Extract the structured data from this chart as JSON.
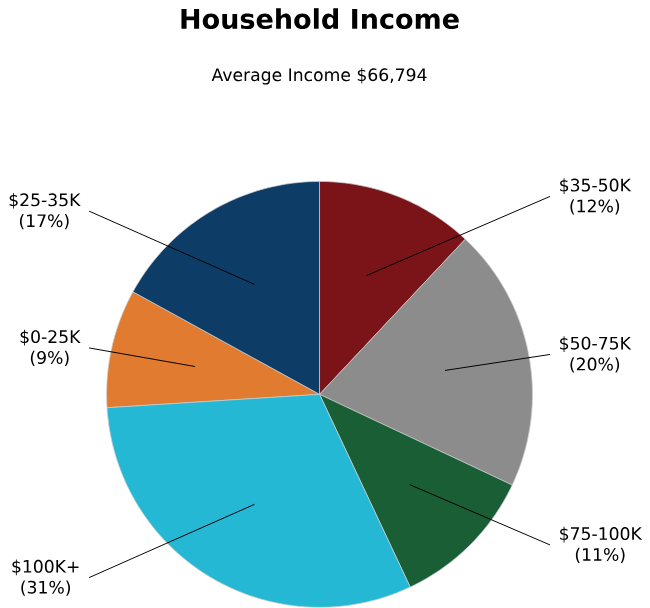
{
  "chart_data": {
    "type": "pie",
    "title": "Household Income",
    "subtitle": "Average Income  $66,794",
    "categories": [
      "$0-25K",
      "$25-35K",
      "$35-50K",
      "$50-75K",
      "$75-100K",
      "$100K+"
    ],
    "values": [
      9,
      17,
      12,
      20,
      11,
      31
    ],
    "value_labels": [
      "(9%)",
      "(17%)",
      "(12%)",
      "(20%)",
      "(11%)",
      "(31%)"
    ],
    "colors": [
      "#e07b30",
      "#0d3d66",
      "#7a1418",
      "#8c8c8c",
      "#1a5e35",
      "#25b8d4"
    ]
  }
}
